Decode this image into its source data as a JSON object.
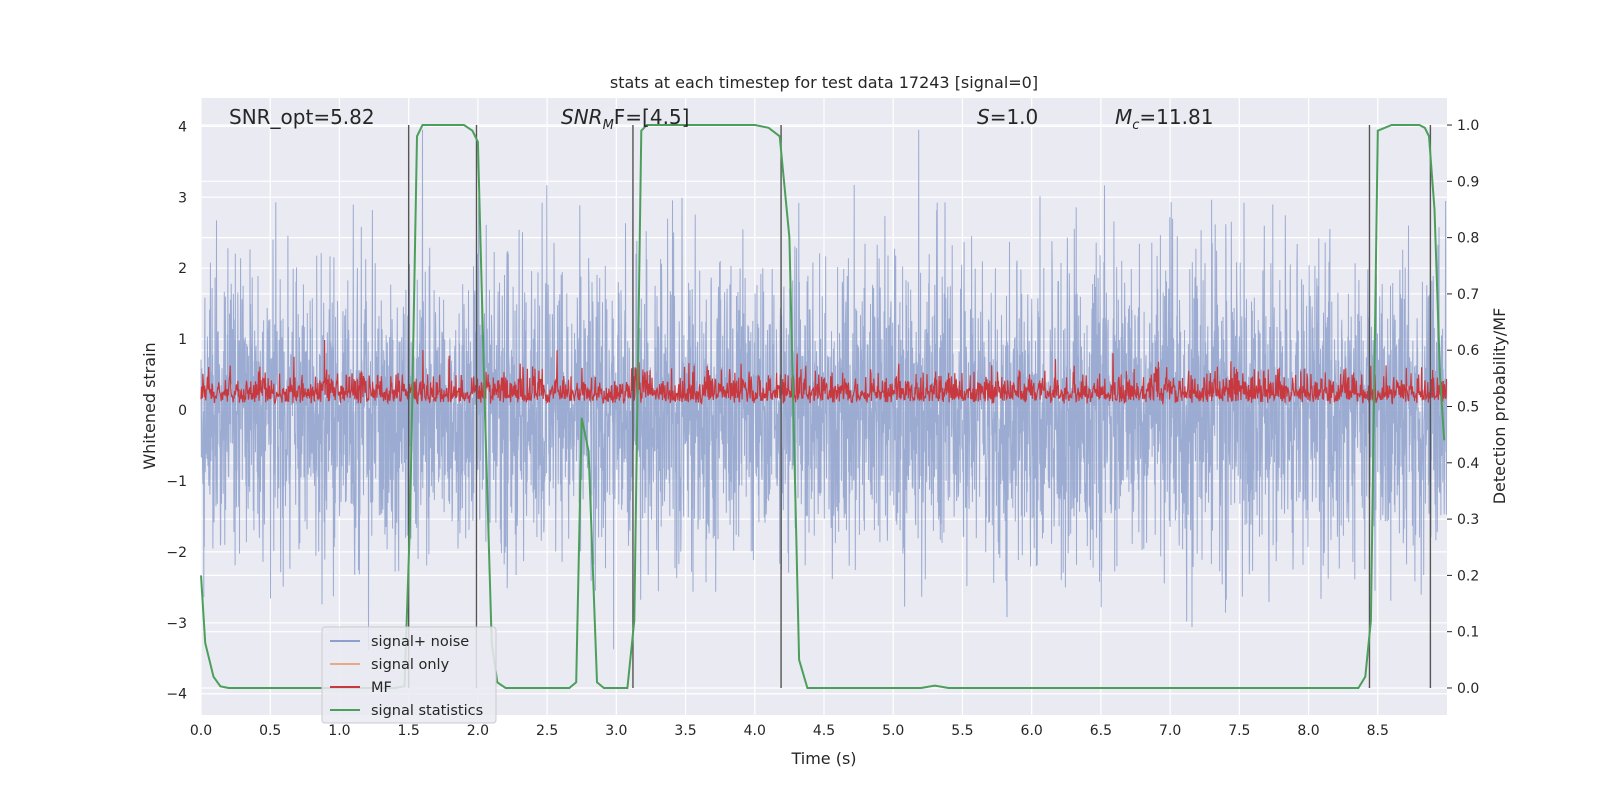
{
  "chart_data": {
    "type": "line",
    "title": "stats at each timestep for test data 17243 [signal=0]",
    "xlabel": "Time (s)",
    "ylabel": "Whitened strain",
    "y2label": "Detection probability/MF",
    "xlim": [
      0,
      9.0
    ],
    "ylim": [
      -4.3,
      4.4
    ],
    "y2lim": [
      -0.048,
      1.048
    ],
    "grid": true,
    "xticks": [
      "0.0",
      "0.5",
      "1.0",
      "1.5",
      "2.0",
      "2.5",
      "3.0",
      "3.5",
      "4.0",
      "4.5",
      "5.0",
      "5.5",
      "6.0",
      "6.5",
      "7.0",
      "7.5",
      "8.0",
      "8.5"
    ],
    "yticks": [
      "4",
      "3",
      "2",
      "1",
      "0",
      "−1",
      "−2",
      "−3",
      "−4"
    ],
    "y2ticks": [
      "1.0",
      "0.9",
      "0.8",
      "0.7",
      "0.6",
      "0.5",
      "0.4",
      "0.3",
      "0.2",
      "0.1",
      "0.0"
    ],
    "annotations": {
      "snr_opt": "SNR_opt=5.82",
      "snr_mf_main": "SNR",
      "snr_mf_sub": "M",
      "snr_mf_rest": "F=[4.5]",
      "s_var": "S",
      "s_val": "=1.0",
      "mc_var": "M",
      "mc_sub": "c",
      "mc_val": "=11.81"
    },
    "legend": {
      "position": "lower-left",
      "entries": [
        "signal+ noise",
        "signal only",
        "MF",
        "signal statistics"
      ]
    },
    "series": [
      {
        "name": "signal+ noise",
        "color": "#8da0cb",
        "description_values": "whitened noise, approx Gaussian, range -3.6 to 4.0"
      },
      {
        "name": "signal only",
        "color": "#e8a88a",
        "values": []
      },
      {
        "name": "MF",
        "color": "#c8393f",
        "description_values": "matched-filter output, approx range 0.05 to 1.0"
      },
      {
        "name": "signal statistics",
        "color": "#4c9f5a",
        "x": [
          0.0,
          0.03,
          0.09,
          0.14,
          0.2,
          0.5,
          1.0,
          1.4,
          1.47,
          1.51,
          1.56,
          1.6,
          1.7,
          1.9,
          1.96,
          2.0,
          2.05,
          2.1,
          2.14,
          2.2,
          2.5,
          2.6,
          2.66,
          2.71,
          2.75,
          2.8,
          2.86,
          2.91,
          3.0,
          3.08,
          3.13,
          3.18,
          3.22,
          3.5,
          4.0,
          4.1,
          4.18,
          4.25,
          4.32,
          4.38,
          4.6,
          5.0,
          5.2,
          5.3,
          5.4,
          6.0,
          7.0,
          8.0,
          8.36,
          8.41,
          8.45,
          8.5,
          8.6,
          8.8,
          8.84,
          8.87,
          8.91,
          8.95,
          8.98
        ],
        "y": [
          0.2,
          0.08,
          0.02,
          0.003,
          0.0,
          0.0,
          0.0,
          0.0,
          0.003,
          0.3,
          0.98,
          1.0,
          1.0,
          1.0,
          0.99,
          0.97,
          0.5,
          0.08,
          0.01,
          0.0,
          0.0,
          0.0,
          0.0,
          0.01,
          0.48,
          0.42,
          0.01,
          0.0,
          0.0,
          0.0,
          0.12,
          0.99,
          1.0,
          1.0,
          1.0,
          0.995,
          0.98,
          0.8,
          0.05,
          0.0,
          0.0,
          0.0,
          0.0,
          0.004,
          0.0,
          0.0,
          0.0,
          0.0,
          0.0,
          0.02,
          0.12,
          0.99,
          1.0,
          1.0,
          0.995,
          0.98,
          0.85,
          0.55,
          0.44
        ]
      }
    ],
    "vertical_lines": [
      1.5,
      1.99,
      3.12,
      4.19,
      8.44,
      8.88
    ]
  }
}
